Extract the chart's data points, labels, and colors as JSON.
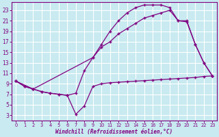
{
  "xlabel": "Windchill (Refroidissement éolien,°C)",
  "xlim": [
    -0.5,
    23.5
  ],
  "ylim": [
    2,
    24.5
  ],
  "yticks": [
    3,
    5,
    7,
    9,
    11,
    13,
    15,
    17,
    19,
    21,
    23
  ],
  "xticks": [
    0,
    1,
    2,
    3,
    4,
    5,
    6,
    7,
    8,
    9,
    10,
    11,
    12,
    13,
    14,
    15,
    16,
    17,
    18,
    19,
    20,
    21,
    22,
    23
  ],
  "bg_color": "#c8eaf0",
  "grid_color": "#ffffff",
  "line_color": "#800080",
  "line1_x": [
    0,
    1,
    2,
    3,
    4,
    5,
    6,
    7,
    8,
    9,
    10,
    11,
    12,
    13,
    14,
    15,
    16,
    17,
    18,
    19,
    20,
    21,
    22,
    23
  ],
  "line1_y": [
    9.5,
    8.5,
    8.0,
    7.5,
    7.2,
    7.0,
    6.8,
    3.2,
    4.8,
    8.5,
    9.0,
    9.2,
    9.3,
    9.4,
    9.5,
    9.6,
    9.7,
    9.8,
    9.9,
    10.0,
    10.1,
    10.2,
    10.4,
    10.5
  ],
  "line2_x": [
    0,
    1,
    2,
    3,
    4,
    5,
    6,
    7,
    8,
    9,
    10,
    11,
    12,
    13,
    14,
    15,
    16,
    17,
    18,
    19,
    20,
    21,
    22,
    23
  ],
  "line2_y": [
    9.5,
    8.5,
    8.0,
    7.5,
    7.2,
    7.0,
    6.8,
    7.2,
    11.5,
    14.0,
    16.5,
    19.0,
    21.0,
    22.5,
    23.5,
    24.0,
    24.0,
    24.0,
    23.5,
    21.0,
    20.8,
    16.5,
    13.0,
    10.5
  ],
  "line3_x": [
    0,
    2,
    9,
    10,
    11,
    12,
    13,
    14,
    15,
    16,
    17,
    18,
    19,
    20,
    21,
    22,
    23
  ],
  "line3_y": [
    9.5,
    8.0,
    14.0,
    16.0,
    17.0,
    18.5,
    19.5,
    20.5,
    21.5,
    22.0,
    22.5,
    23.0,
    21.0,
    21.0,
    16.5,
    13.0,
    10.5
  ],
  "marker": "+"
}
